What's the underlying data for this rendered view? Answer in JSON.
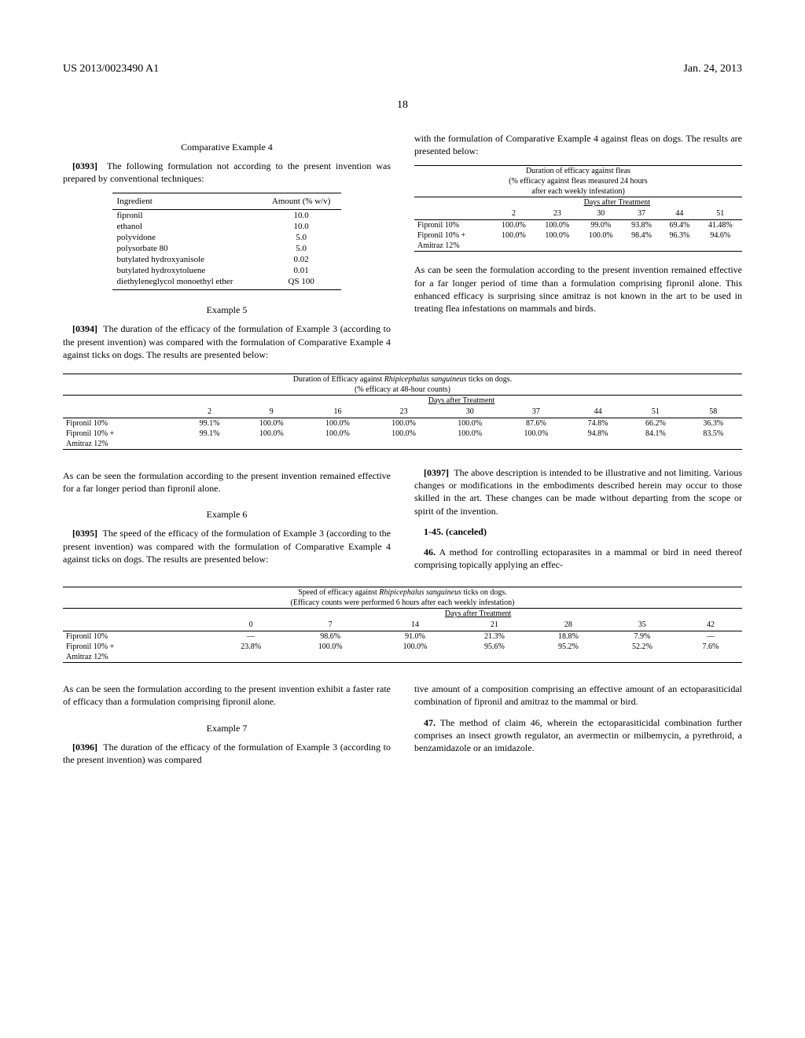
{
  "header": {
    "doc_number": "US 2013/0023490 A1",
    "date": "Jan. 24, 2013",
    "page_number": "18"
  },
  "comp_ex4": {
    "heading": "Comparative Example 4",
    "para_num": "[0393]",
    "para_text": "The following formulation not according to the present invention was prepared by conventional techniques:"
  },
  "formulation": {
    "col1": "Ingredient",
    "col2": "Amount (% w/v)",
    "rows": [
      [
        "fipronil",
        "10.0"
      ],
      [
        "ethanol",
        "10.0"
      ],
      [
        "polyvidone",
        "5.0"
      ],
      [
        "polysorbate 80",
        "5.0"
      ],
      [
        "butylated hydroxyanisole",
        "0.02"
      ],
      [
        "butylated hydroxytoluene",
        "0.01"
      ],
      [
        "diethyleneglycol monoethyl ether",
        "QS 100"
      ]
    ]
  },
  "ex5": {
    "heading": "Example 5",
    "para_num": "[0394]",
    "para_text": "The duration of the efficacy of the formulation of Example 3 (according to the present invention) was compared with the formulation of Comparative Example 4 against ticks on dogs. The results are presented below:"
  },
  "table5": {
    "title": "Duration of Efficacy against",
    "title_italic": "Rhipicephalus sanguineus",
    "title_suffix": "ticks on dogs.",
    "subtitle": "(% efficacy at 48-hour counts)",
    "days_header": "Days after Treatment",
    "cols": [
      "2",
      "9",
      "16",
      "23",
      "30",
      "37",
      "44",
      "51",
      "58"
    ],
    "rows": [
      {
        "label": "Fipronil 10%",
        "vals": [
          "99.1%",
          "100.0%",
          "100.0%",
          "100.0%",
          "100.0%",
          "87.6%",
          "74.8%",
          "66.2%",
          "36.3%"
        ]
      },
      {
        "label": "Fipronil 10% +",
        "label2": "Amitraz 12%",
        "vals": [
          "99.1%",
          "100.0%",
          "100.0%",
          "100.0%",
          "100.0%",
          "100.0%",
          "94.8%",
          "84.1%",
          "83.5%"
        ]
      }
    ],
    "note": "As can be seen the formulation according to the present invention remained effective for a far longer period than fipronil alone."
  },
  "ex6": {
    "heading": "Example 6",
    "para_num": "[0395]",
    "para_text": "The speed of the efficacy of the formulation of Example 3 (according to the present invention) was compared with the formulation of Comparative Example 4 against ticks on dogs. The results are presented below:"
  },
  "table6": {
    "title": "Speed of efficacy against",
    "title_italic": "Rhipicephalus sanguineus",
    "title_suffix": "ticks on dogs.",
    "subtitle": "(Efficacy counts were performed 6 hours after each weekly infestation)",
    "days_header": "Days after Treatment",
    "cols": [
      "0",
      "7",
      "14",
      "21",
      "28",
      "35",
      "42"
    ],
    "rows": [
      {
        "label": "Fipronil 10%",
        "vals": [
          "—",
          "98.6%",
          "91.0%",
          "21.3%",
          "18.8%",
          "7.9%",
          "—"
        ]
      },
      {
        "label": "Fipronil 10% +",
        "label2": "Amitraz 12%",
        "vals": [
          "23.8%",
          "100.0%",
          "100.0%",
          "95.6%",
          "95.2%",
          "52.2%",
          "7.6%"
        ]
      }
    ],
    "note": "As can be seen the formulation according to the present invention exhibit a faster rate of efficacy than a formulation comprising fipronil alone."
  },
  "ex7": {
    "heading": "Example 7",
    "para_num": "[0396]",
    "para_text": "The duration of the efficacy of the formulation of Example 3 (according to the present invention) was compared",
    "para_text2": "with the formulation of Comparative Example 4 against fleas on dogs. The results are presented below:"
  },
  "table7": {
    "title": "Duration of efficacy against fleas",
    "subtitle1": "(% efficacy against fleas measured 24 hours",
    "subtitle2": "after each weekly infestation)",
    "days_header": "Days after Treatment",
    "cols": [
      "2",
      "23",
      "30",
      "37",
      "44",
      "51"
    ],
    "rows": [
      {
        "label": "Fipronil 10%",
        "vals": [
          "100.0%",
          "100.0%",
          "99.0%",
          "93.8%",
          "69.4%",
          "41.48%"
        ]
      },
      {
        "label": "Fipronil 10% +",
        "label2": "Amitraz 12%",
        "vals": [
          "100.0%",
          "100.0%",
          "100.0%",
          "98.4%",
          "96.3%",
          "94.6%"
        ]
      }
    ],
    "note": "As can be seen the formulation according to the present invention remained effective for a far longer period of time than a formulation comprising fipronil alone. This enhanced efficacy is surprising since amitraz is not known in the art to be used in treating flea infestations on mammals and birds."
  },
  "closing": {
    "para_num": "[0397]",
    "para_text": "The above description is intended to be illustrative and not limiting. Various changes or modifications in the embodiments described herein may occur to those skilled in the art. These changes can be made without departing from the scope or spirit of the invention."
  },
  "claims": {
    "canceled": "1-45. (canceled)",
    "c46num": "46.",
    "c46a": "A method for controlling ectoparasites in a mammal or bird in need thereof comprising topically applying an effec-",
    "c46b": "tive amount of a composition comprising an effective amount of an ectoparasiticidal combination of fipronil and amitraz to the mammal or bird.",
    "c47num": "47.",
    "c47": "The method of claim 46, wherein the ectoparasiticidal combination further comprises an insect growth regulator, an avermectin or milbemycin, a pyrethroid, a benzamidazole or an imidazole."
  }
}
